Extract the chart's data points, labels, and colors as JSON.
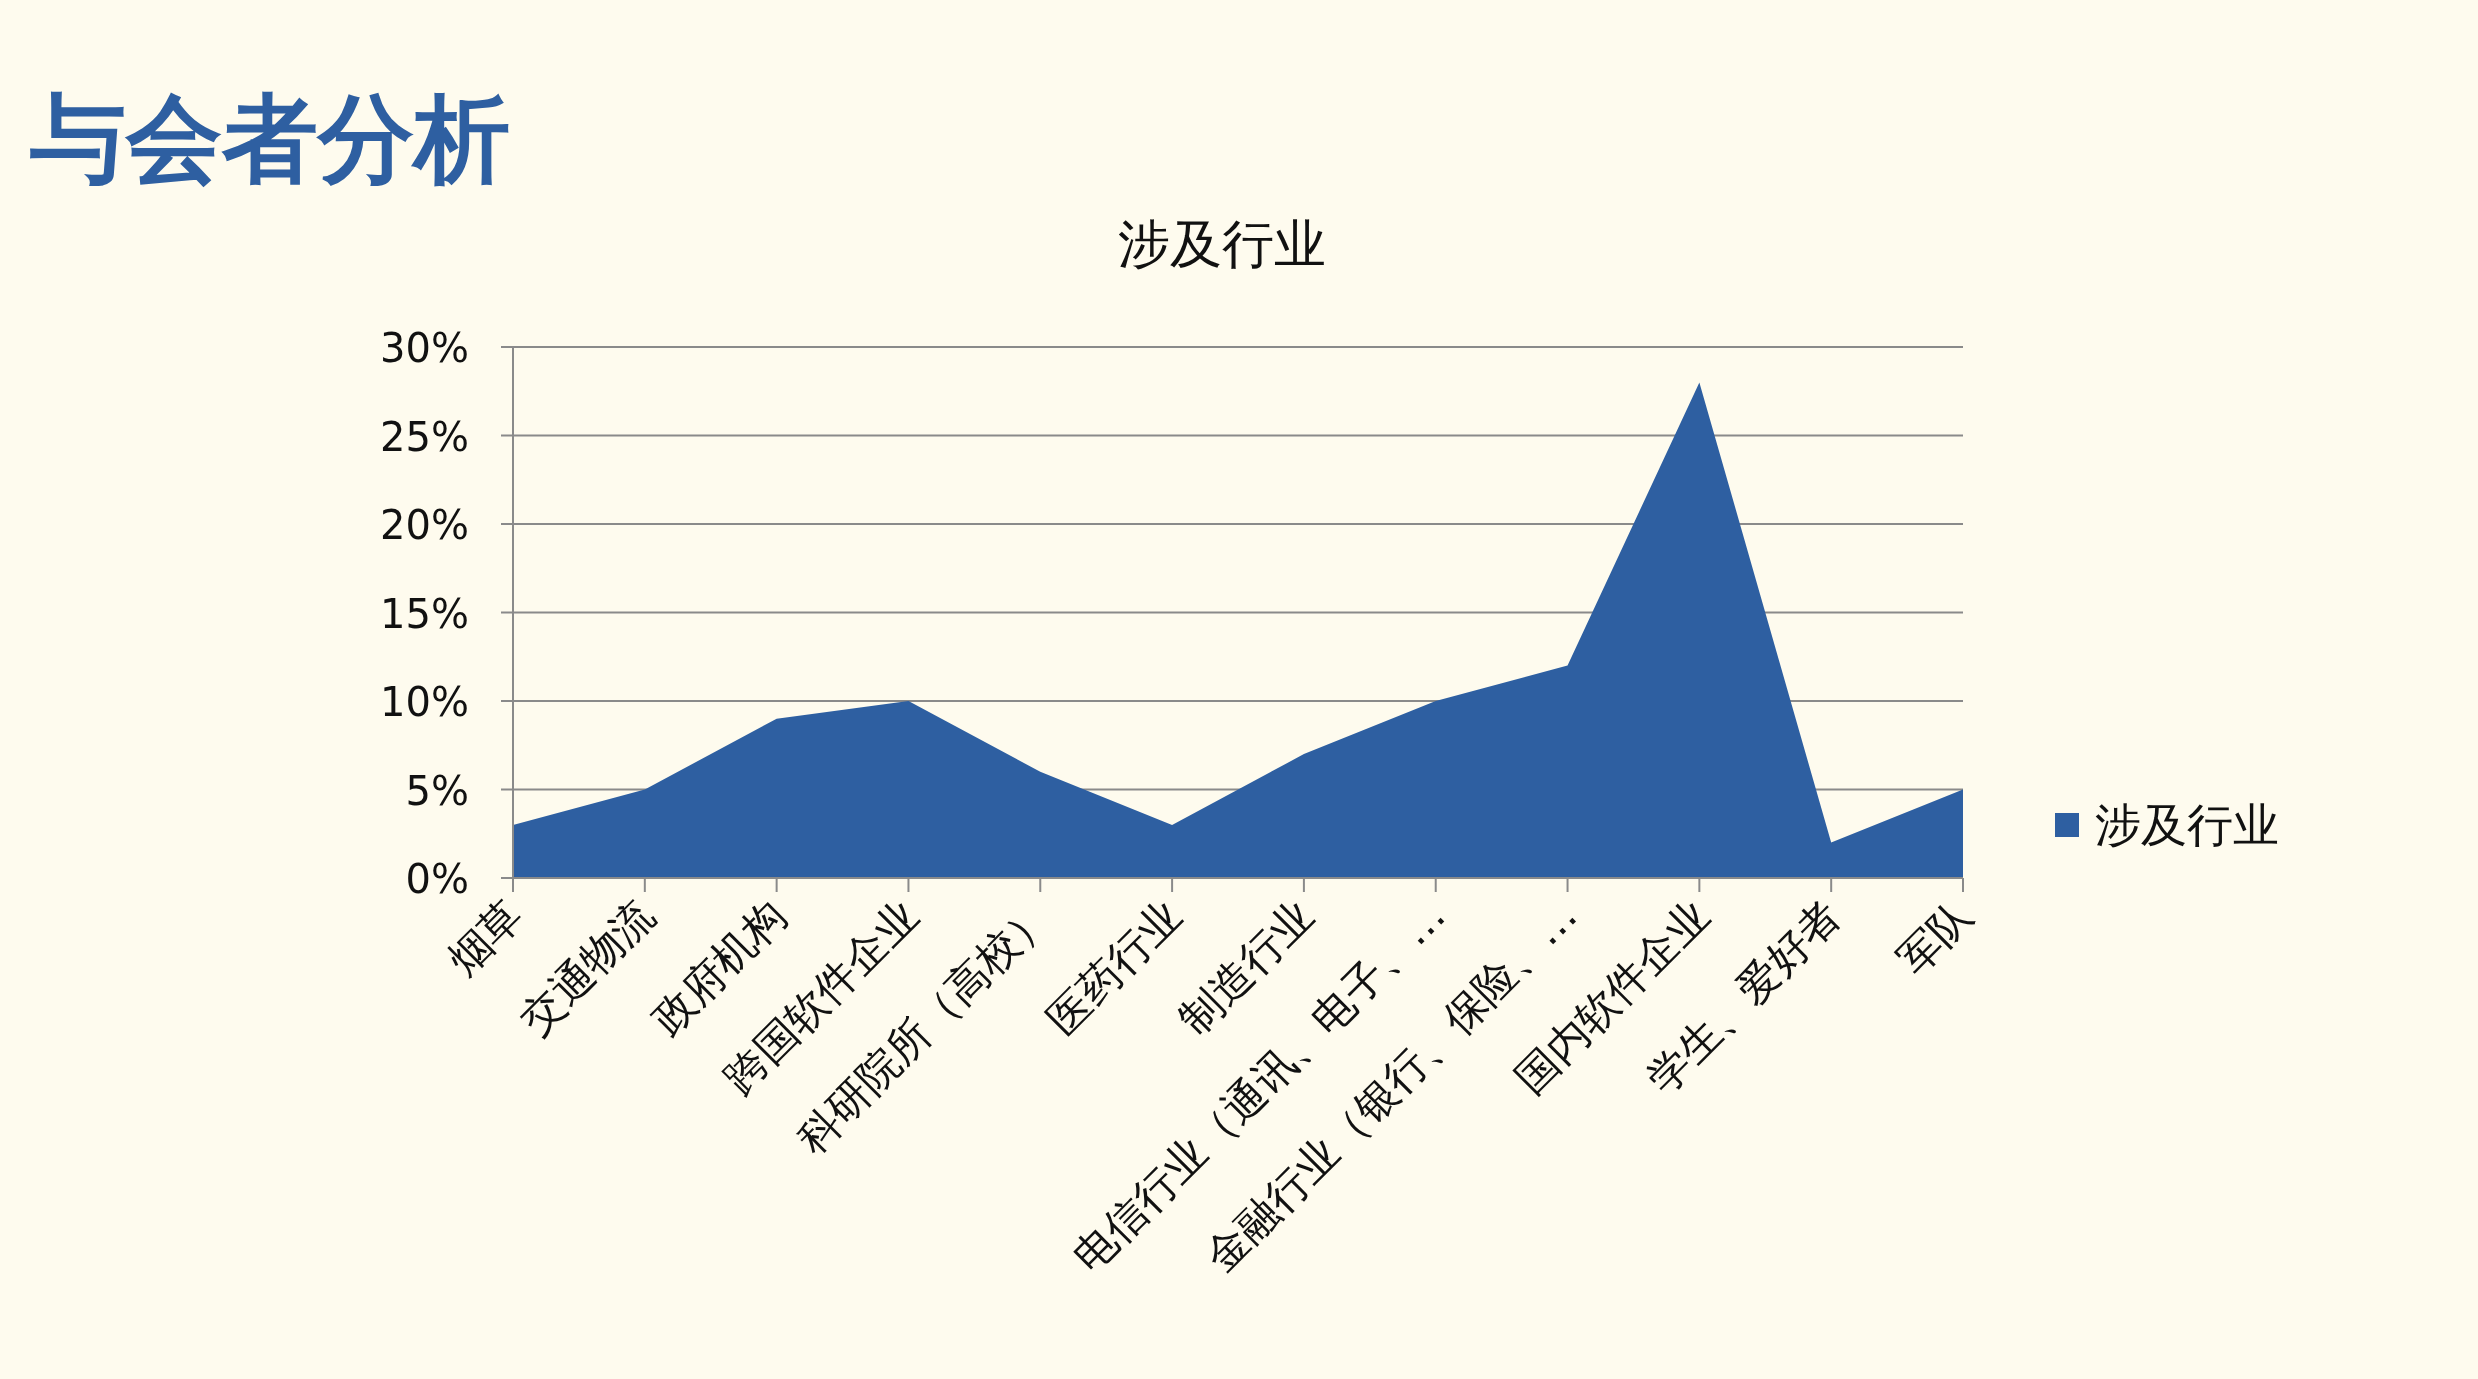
{
  "chart_data": {
    "type": "area",
    "title": "与会者分析",
    "subtitle": "涉及行业",
    "categories": [
      "烟草",
      "交通物流",
      "政府机构",
      "跨国软件企业",
      "科研院所（高校）",
      "医药行业",
      "制造行业",
      "电信行业（通讯、电子、…",
      "金融行业（银行、保险、…",
      "国内软件企业",
      "学生、爱好者",
      "军队"
    ],
    "series": [
      {
        "name": "涉及行业",
        "color": "#2e5fa1",
        "values": [
          3,
          5,
          9,
          10,
          6,
          3,
          7,
          10,
          12,
          28,
          2,
          5
        ]
      }
    ],
    "ylim": [
      0,
      30
    ],
    "yticks": [
      {
        "value": 0,
        "label": "0%"
      },
      {
        "value": 5,
        "label": "5%"
      },
      {
        "value": 10,
        "label": "10%"
      },
      {
        "value": 15,
        "label": "15%"
      },
      {
        "value": 20,
        "label": "20%"
      },
      {
        "value": 25,
        "label": "25%"
      },
      {
        "value": 30,
        "label": "30%"
      }
    ],
    "grid": "y",
    "legend": "right"
  }
}
